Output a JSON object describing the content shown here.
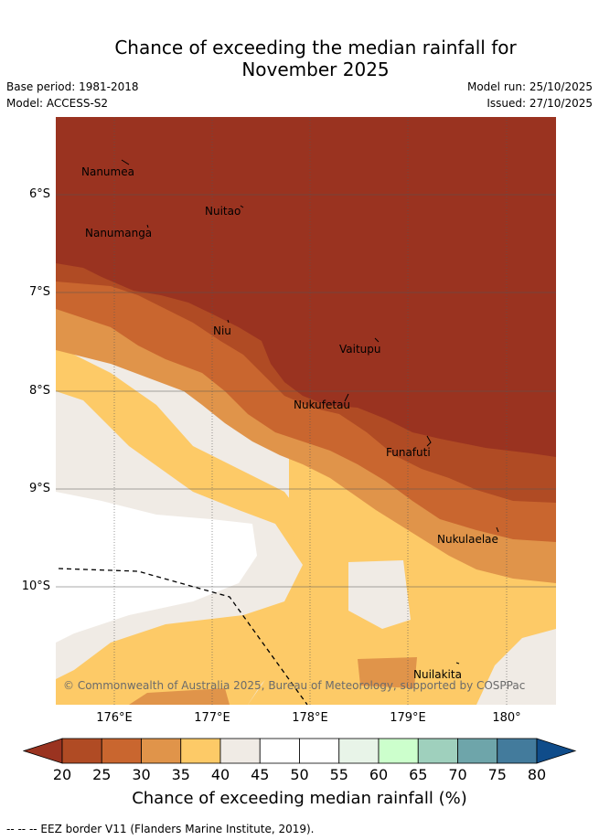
{
  "header": {
    "title_line1": "Chance of exceeding the median rainfall for",
    "title_line2": "November 2025",
    "base_period": "Base period: 1981-2018",
    "model": "Model: ACCESS-S2",
    "model_run": "Model run: 25/10/2025",
    "issued": "Issued: 27/10/2025"
  },
  "map": {
    "latitude_labels": [
      "6°S",
      "7°S",
      "8°S",
      "9°S",
      "10°S"
    ],
    "longitude_labels": [
      "176°E",
      "177°E",
      "178°E",
      "179°E",
      "180°"
    ],
    "places": [
      "Nanumea",
      "Nuitao",
      "Nanumanga",
      "Niu",
      "Vaitupu",
      "Nukufetau",
      "Funafuti",
      "Nukulaelae",
      "Nuilakita"
    ],
    "copyright": "© Commonwealth of Australia 2025, Bureau of Meteorology, supported by COSPPac"
  },
  "colorbar": {
    "ticks": [
      "20",
      "25",
      "30",
      "35",
      "40",
      "45",
      "50",
      "55",
      "60",
      "65",
      "70",
      "75",
      "80"
    ],
    "colors": [
      "#b04b24",
      "#c9662f",
      "#e0944a",
      "#fdca67",
      "#f0ebe5",
      "#ffffff",
      "#ffffff",
      "#e8f4e8",
      "#ccffcc",
      "#9fd0bd",
      "#6ea5aa",
      "#437b9c"
    ],
    "under_color": "#9a3320",
    "over_color": "#0f4c8a",
    "title": "Chance of exceeding median rainfall (%)"
  },
  "legend": {
    "eez": "-- -- -- EEZ border V11 (Flanders Marine Institute, 2019)."
  }
}
